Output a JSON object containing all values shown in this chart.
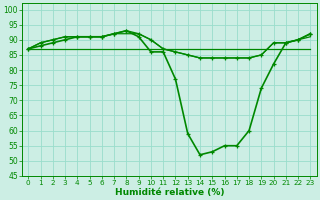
{
  "xlabel": "Humidité relative (%)",
  "bg_color": "#cceee4",
  "grid_color": "#99ddcc",
  "line_color": "#008800",
  "xlim": [
    -0.5,
    23.5
  ],
  "ylim": [
    45,
    102
  ],
  "yticks": [
    45,
    50,
    55,
    60,
    65,
    70,
    75,
    80,
    85,
    90,
    95,
    100
  ],
  "xticks": [
    0,
    1,
    2,
    3,
    4,
    5,
    6,
    7,
    8,
    9,
    10,
    11,
    12,
    13,
    14,
    15,
    16,
    17,
    18,
    19,
    20,
    21,
    22,
    23
  ],
  "series": [
    {
      "y": [
        87,
        87,
        87,
        87,
        87,
        87,
        87,
        87,
        87,
        87,
        87,
        87,
        87,
        87,
        87,
        87,
        87,
        87,
        87,
        87,
        87,
        87,
        87,
        87
      ],
      "lw": 0.9,
      "marker": false
    },
    {
      "y": [
        87,
        89,
        90,
        91,
        91,
        91,
        91,
        92,
        92,
        92,
        90,
        87,
        86,
        85,
        84,
        84,
        84,
        84,
        84,
        85,
        89,
        89,
        90,
        91
      ],
      "lw": 0.9,
      "marker": false
    },
    {
      "y": [
        87,
        89,
        90,
        91,
        91,
        91,
        91,
        92,
        93,
        92,
        90,
        87,
        86,
        85,
        84,
        84,
        84,
        84,
        84,
        85,
        89,
        89,
        90,
        92
      ],
      "lw": 1.0,
      "marker": true
    },
    {
      "y": [
        87,
        88,
        89,
        90,
        91,
        91,
        91,
        92,
        93,
        91,
        86,
        86,
        77,
        59,
        52,
        53,
        55,
        55,
        60,
        74,
        82,
        89,
        90,
        92
      ],
      "lw": 1.2,
      "marker": true
    }
  ]
}
